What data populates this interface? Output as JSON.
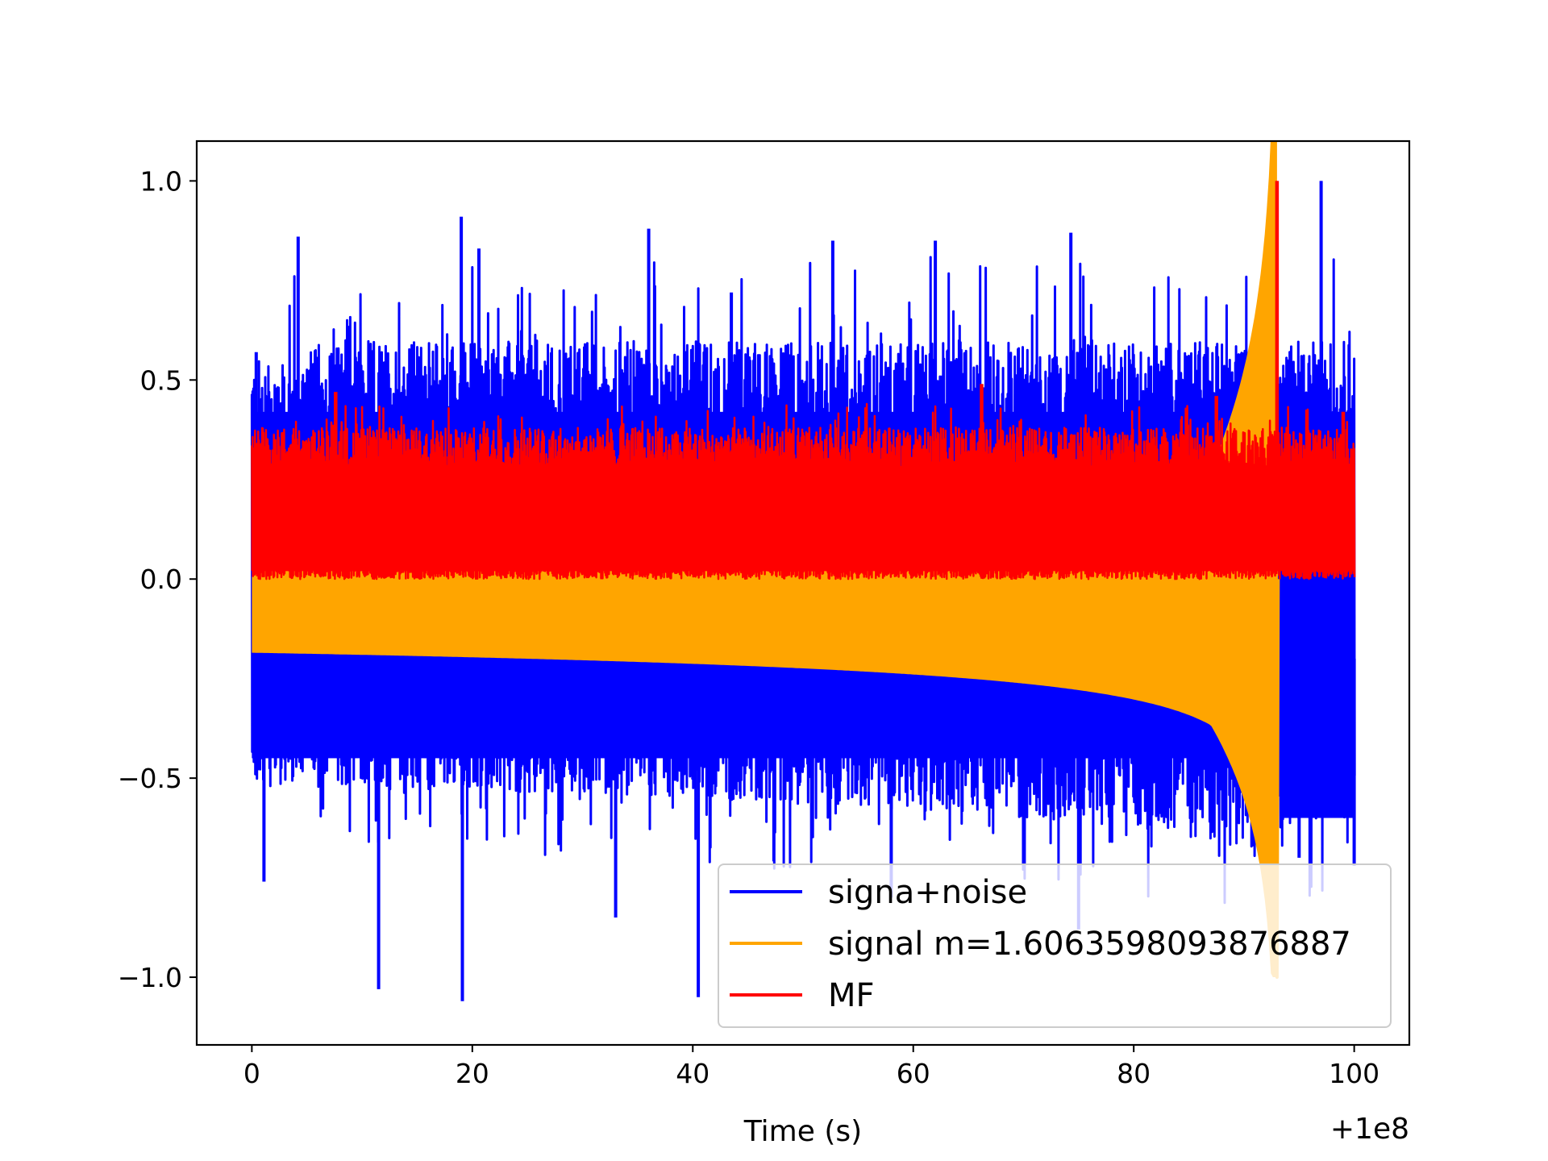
{
  "chart_data": {
    "type": "line",
    "title": "",
    "xlabel": "Time (s)",
    "ylabel": "",
    "x_offset_label": "+1e8",
    "xlim": [
      -5,
      105
    ],
    "ylim": [
      -1.17,
      1.1
    ],
    "x_ticks": [
      0,
      20,
      40,
      60,
      80,
      100
    ],
    "x_tick_labels": [
      "0",
      "20",
      "40",
      "60",
      "80",
      "100"
    ],
    "y_ticks": [
      -1.0,
      -0.5,
      0.0,
      0.5,
      1.0
    ],
    "y_tick_labels": [
      "−1.0",
      "−0.5",
      "0.0",
      "0.5",
      "1.0"
    ],
    "grid": false,
    "legend_position": "lower-right",
    "series": [
      {
        "name": "signa+noise",
        "color": "#0000ff",
        "x_range": [
          0,
          100
        ],
        "envelope_upper": [
          [
            0,
            0.55
          ],
          [
            10,
            0.6
          ],
          [
            20,
            0.6
          ],
          [
            30,
            0.6
          ],
          [
            40,
            0.6
          ],
          [
            50,
            0.6
          ],
          [
            60,
            0.6
          ],
          [
            70,
            0.6
          ],
          [
            80,
            0.6
          ],
          [
            90,
            0.6
          ],
          [
            100,
            0.6
          ]
        ],
        "envelope_lower": [
          [
            0,
            -0.52
          ],
          [
            20,
            -0.53
          ],
          [
            40,
            -0.55
          ],
          [
            60,
            -0.58
          ],
          [
            80,
            -0.62
          ],
          [
            90,
            -0.68
          ],
          [
            92,
            -0.72
          ],
          [
            93.5,
            -0.62
          ],
          [
            100,
            -0.6
          ]
        ],
        "peaks_upper": [
          [
            0.4,
            0.57
          ],
          [
            4.2,
            0.86
          ],
          [
            19,
            0.91
          ],
          [
            20.6,
            0.83
          ],
          [
            36,
            0.88
          ],
          [
            43.5,
            0.72
          ],
          [
            52.7,
            0.85
          ],
          [
            62,
            0.85
          ],
          [
            74.3,
            0.87
          ],
          [
            92.5,
            0.75
          ],
          [
            97,
            1.0
          ]
        ],
        "peaks_lower": [
          [
            1.1,
            -0.76
          ],
          [
            11.5,
            -1.03
          ],
          [
            19.1,
            -1.06
          ],
          [
            33,
            -0.85
          ],
          [
            40.5,
            -1.05
          ],
          [
            58,
            -0.8
          ],
          [
            75,
            -0.88
          ],
          [
            95,
            -0.7
          ],
          [
            100,
            -0.72
          ]
        ]
      },
      {
        "name": "signal m=1.6063598093876887",
        "color": "#ffa500",
        "x_range": [
          0,
          93
        ],
        "chirp_amplitude_start": 0.185,
        "merger_time": 93.0,
        "merger_amplitude": 1.0
      },
      {
        "name": "MF",
        "color": "#ff0000",
        "x_range": [
          0,
          100
        ],
        "baseline_range": [
          0.0,
          0.3
        ],
        "peaks": [
          [
            7.6,
            0.47
          ],
          [
            66.2,
            0.49
          ],
          [
            87.5,
            0.46
          ],
          [
            93.0,
            1.0
          ],
          [
            99.0,
            0.42
          ]
        ]
      }
    ]
  }
}
